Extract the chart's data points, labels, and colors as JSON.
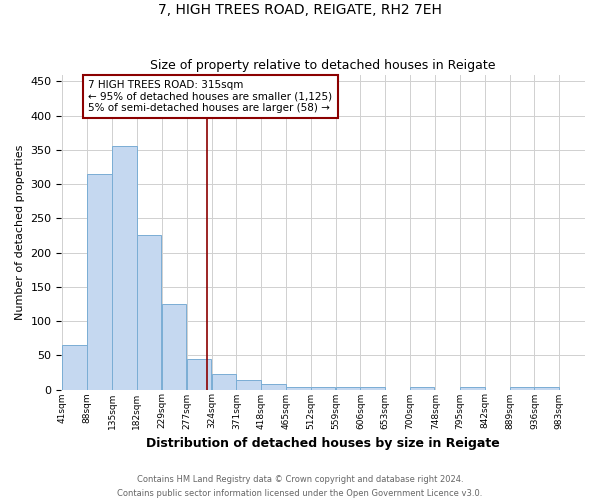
{
  "title": "7, HIGH TREES ROAD, REIGATE, RH2 7EH",
  "subtitle": "Size of property relative to detached houses in Reigate",
  "xlabel": "Distribution of detached houses by size in Reigate",
  "ylabel": "Number of detached properties",
  "footer_line1": "Contains HM Land Registry data © Crown copyright and database right 2024.",
  "footer_line2": "Contains public sector information licensed under the Open Government Licence v3.0.",
  "bins": [
    41,
    88,
    135,
    182,
    229,
    277,
    324,
    371,
    418,
    465,
    512,
    559,
    606,
    653,
    700,
    748,
    795,
    842,
    889,
    936,
    983
  ],
  "counts": [
    65,
    315,
    355,
    225,
    125,
    45,
    22,
    14,
    8,
    3,
    3,
    3,
    4,
    0,
    3,
    0,
    3,
    0,
    3,
    3
  ],
  "bar_color": "#c5d8f0",
  "bar_edge_color": "#7aadd4",
  "vline_color": "#8b0000",
  "vline_x": 315,
  "annotation_line1": "7 HIGH TREES ROAD: 315sqm",
  "annotation_line2": "← 95% of detached houses are smaller (1,125)",
  "annotation_line3": "5% of semi-detached houses are larger (58) →",
  "annotation_box_edge_color": "#8b0000",
  "annotation_box_facecolor": "#ffffff",
  "annotation_fontsize": 7.5,
  "ylim": [
    0,
    460
  ],
  "yticks": [
    0,
    50,
    100,
    150,
    200,
    250,
    300,
    350,
    400,
    450
  ],
  "background_color": "#ffffff",
  "grid_color": "#d0d0d0"
}
